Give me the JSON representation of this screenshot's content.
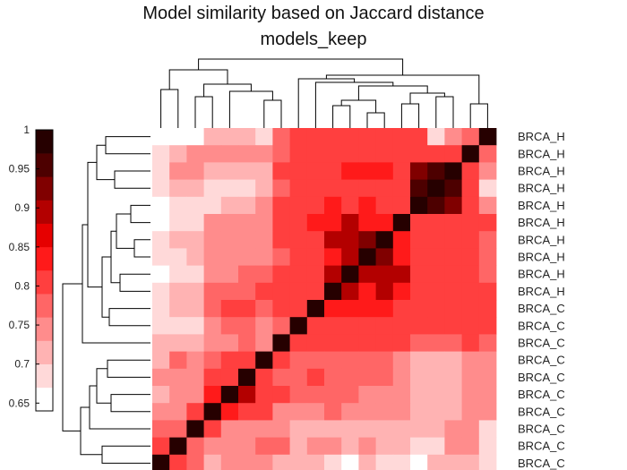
{
  "chart_data": {
    "type": "heatmap",
    "title": "Model similarity based on Jaccard distance",
    "subtitle": "models_keep",
    "row_labels": [
      "BRCA_H",
      "BRCA_H",
      "BRCA_H",
      "BRCA_H",
      "BRCA_H",
      "BRCA_H",
      "BRCA_H",
      "BRCA_H",
      "BRCA_H",
      "BRCA_H",
      "BRCA_C",
      "BRCA_C",
      "BRCA_C",
      "BRCA_C",
      "BRCA_C",
      "BRCA_C",
      "BRCA_C",
      "BRCA_C",
      "BRCA_C",
      "BRCA_C"
    ],
    "colorbar": {
      "ticks": [
        "1",
        "0.95",
        "0.9",
        "0.85",
        "0.8",
        "0.75",
        "0.7",
        "0.65"
      ],
      "range": [
        0.64,
        1.0
      ],
      "levels": 12
    },
    "colormap": [
      "#ffffff",
      "#ffd9d9",
      "#ffb3b3",
      "#ff8c8c",
      "#ff6666",
      "#ff3f3f",
      "#ff1a1a",
      "#e60000",
      "#b30000",
      "#800000",
      "#4d0000",
      "#260000"
    ],
    "matrix": [
      [
        0.64,
        0.64,
        0.64,
        0.72,
        0.72,
        0.72,
        0.69,
        0.76,
        0.79,
        0.79,
        0.79,
        0.79,
        0.79,
        0.79,
        0.82,
        0.79,
        0.69,
        0.74,
        0.76,
        1.0
      ],
      [
        0.69,
        0.72,
        0.74,
        0.74,
        0.74,
        0.74,
        0.74,
        0.76,
        0.82,
        0.82,
        0.82,
        0.82,
        0.82,
        0.82,
        0.82,
        0.82,
        0.79,
        0.79,
        1.0,
        0.76
      ],
      [
        0.69,
        0.74,
        0.74,
        0.72,
        0.72,
        0.72,
        0.72,
        0.79,
        0.82,
        0.82,
        0.82,
        0.85,
        0.85,
        0.85,
        0.79,
        0.92,
        0.95,
        1.0,
        0.79,
        0.74
      ],
      [
        0.69,
        0.72,
        0.72,
        0.69,
        0.69,
        0.69,
        0.72,
        0.76,
        0.79,
        0.82,
        0.82,
        0.82,
        0.82,
        0.82,
        0.79,
        0.95,
        1.0,
        0.95,
        0.79,
        0.69
      ],
      [
        0.64,
        0.69,
        0.69,
        0.69,
        0.72,
        0.72,
        0.74,
        0.79,
        0.82,
        0.82,
        0.85,
        0.82,
        0.85,
        0.82,
        0.79,
        1.0,
        0.95,
        0.92,
        0.82,
        0.74
      ],
      [
        0.64,
        0.69,
        0.69,
        0.74,
        0.74,
        0.74,
        0.74,
        0.79,
        0.82,
        0.85,
        0.85,
        0.88,
        0.85,
        0.85,
        1.0,
        0.82,
        0.79,
        0.79,
        0.82,
        0.79
      ],
      [
        0.69,
        0.72,
        0.72,
        0.74,
        0.74,
        0.74,
        0.74,
        0.79,
        0.79,
        0.82,
        0.88,
        0.88,
        0.92,
        1.0,
        0.85,
        0.82,
        0.82,
        0.82,
        0.82,
        0.76
      ],
      [
        0.69,
        0.69,
        0.72,
        0.74,
        0.74,
        0.74,
        0.74,
        0.76,
        0.79,
        0.82,
        0.85,
        0.88,
        1.0,
        0.92,
        0.85,
        0.82,
        0.82,
        0.82,
        0.79,
        0.76
      ],
      [
        0.64,
        0.69,
        0.69,
        0.74,
        0.74,
        0.76,
        0.76,
        0.79,
        0.79,
        0.82,
        0.88,
        1.0,
        0.88,
        0.88,
        0.88,
        0.82,
        0.82,
        0.82,
        0.82,
        0.76
      ],
      [
        0.69,
        0.72,
        0.72,
        0.76,
        0.76,
        0.76,
        0.79,
        0.79,
        0.82,
        0.82,
        1.0,
        0.88,
        0.85,
        0.88,
        0.85,
        0.82,
        0.82,
        0.82,
        0.82,
        0.79
      ],
      [
        0.69,
        0.72,
        0.72,
        0.76,
        0.79,
        0.79,
        0.76,
        0.79,
        0.82,
        1.0,
        0.85,
        0.85,
        0.85,
        0.85,
        0.82,
        0.82,
        0.82,
        0.82,
        0.79,
        0.79
      ],
      [
        0.69,
        0.69,
        0.69,
        0.74,
        0.76,
        0.76,
        0.74,
        0.76,
        1.0,
        0.82,
        0.82,
        0.82,
        0.82,
        0.82,
        0.79,
        0.79,
        0.79,
        0.79,
        0.79,
        0.79
      ],
      [
        0.72,
        0.72,
        0.72,
        0.74,
        0.74,
        0.76,
        0.74,
        1.0,
        0.82,
        0.79,
        0.79,
        0.79,
        0.79,
        0.79,
        0.79,
        0.76,
        0.76,
        0.76,
        0.79,
        0.76
      ],
      [
        0.72,
        0.76,
        0.74,
        0.76,
        0.82,
        0.79,
        1.0,
        0.79,
        0.76,
        0.76,
        0.76,
        0.76,
        0.76,
        0.76,
        0.74,
        0.72,
        0.72,
        0.72,
        0.74,
        0.74
      ],
      [
        0.74,
        0.74,
        0.74,
        0.79,
        0.82,
        1.0,
        0.79,
        0.76,
        0.76,
        0.79,
        0.76,
        0.76,
        0.76,
        0.76,
        0.74,
        0.72,
        0.72,
        0.72,
        0.74,
        0.74
      ],
      [
        0.72,
        0.74,
        0.74,
        0.85,
        1.0,
        0.88,
        0.82,
        0.79,
        0.76,
        0.76,
        0.76,
        0.76,
        0.74,
        0.74,
        0.74,
        0.72,
        0.72,
        0.72,
        0.74,
        0.74
      ],
      [
        0.74,
        0.74,
        0.79,
        1.0,
        0.85,
        0.82,
        0.79,
        0.74,
        0.74,
        0.74,
        0.76,
        0.74,
        0.74,
        0.74,
        0.74,
        0.72,
        0.72,
        0.72,
        0.74,
        0.74
      ],
      [
        0.76,
        0.76,
        1.0,
        0.79,
        0.74,
        0.74,
        0.74,
        0.74,
        0.72,
        0.72,
        0.72,
        0.72,
        0.72,
        0.72,
        0.72,
        0.72,
        0.72,
        0.74,
        0.74,
        0.69
      ],
      [
        0.82,
        1.0,
        0.76,
        0.74,
        0.74,
        0.74,
        0.76,
        0.76,
        0.72,
        0.74,
        0.74,
        0.72,
        0.74,
        0.72,
        0.72,
        0.69,
        0.69,
        0.74,
        0.74,
        0.69
      ],
      [
        1.0,
        0.82,
        0.76,
        0.72,
        0.74,
        0.74,
        0.74,
        0.72,
        0.72,
        0.72,
        0.69,
        0.64,
        0.72,
        0.69,
        0.69,
        0.64,
        0.72,
        0.72,
        0.72,
        0.69
      ]
    ]
  }
}
